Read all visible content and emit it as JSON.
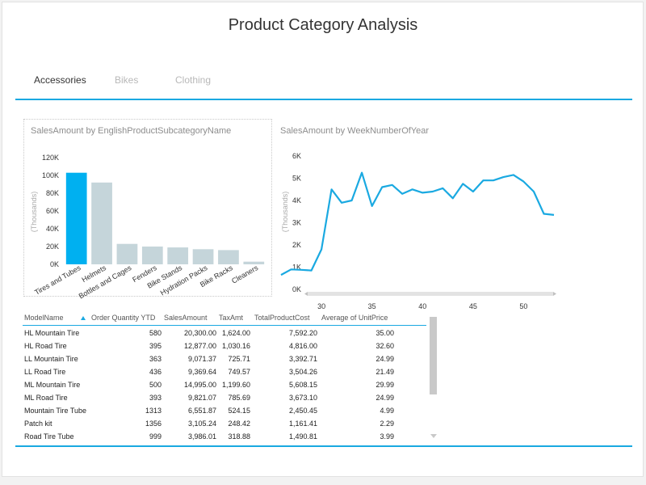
{
  "page": {
    "title": "Product Category Analysis"
  },
  "tabs": [
    {
      "label": "Accessories",
      "active": true
    },
    {
      "label": "Bikes",
      "active": false
    },
    {
      "label": "Clothing",
      "active": false
    }
  ],
  "accent_color": "#1aa9e1",
  "chart_data": [
    {
      "type": "bar",
      "title": "SalesAmount by EnglishProductSubcategoryName",
      "ylabel": "(Thousands)",
      "ylim": [
        0,
        120
      ],
      "yticks": [
        "0K",
        "20K",
        "40K",
        "60K",
        "80K",
        "100K",
        "120K"
      ],
      "categories": [
        "Tires and Tubes",
        "Helmets",
        "Bottles and Cages",
        "Fenders",
        "Bike Stands",
        "Hydration Packs",
        "Bike Racks",
        "Cleaners"
      ],
      "values": [
        103,
        92,
        23,
        20,
        19,
        17,
        16,
        3
      ],
      "highlight_index": 0,
      "colors": {
        "highlight": "#00b0f0",
        "base": "#c5d5da"
      }
    },
    {
      "type": "line",
      "title": "SalesAmount by WeekNumberOfYear",
      "ylabel": "(Thousands)",
      "ylim": [
        0,
        6
      ],
      "yticks": [
        "0K",
        "1K",
        "2K",
        "3K",
        "4K",
        "5K",
        "6K"
      ],
      "xticks": [
        30,
        35,
        40,
        45,
        50
      ],
      "xlim": [
        26,
        53
      ],
      "x": [
        26,
        27,
        28,
        29,
        30,
        31,
        32,
        33,
        34,
        35,
        36,
        37,
        38,
        39,
        40,
        41,
        42,
        43,
        44,
        45,
        46,
        47,
        48,
        49,
        50,
        51,
        52,
        53
      ],
      "y": [
        0.65,
        0.9,
        0.88,
        0.85,
        1.8,
        4.5,
        3.9,
        4.0,
        5.25,
        3.75,
        4.6,
        4.7,
        4.3,
        4.5,
        4.35,
        4.4,
        4.55,
        4.1,
        4.75,
        4.4,
        4.9,
        4.9,
        5.05,
        5.15,
        4.85,
        4.4,
        3.4,
        3.35
      ],
      "color": "#1aa9e1"
    }
  ],
  "table": {
    "columns": [
      "ModelName",
      "Order Quantity YTD",
      "SalesAmount",
      "TaxAmt",
      "TotalProductCost",
      "Average of UnitPrice"
    ],
    "rows": [
      [
        "HL Mountain Tire",
        "580",
        "20,300.00",
        "1,624.00",
        "7,592.20",
        "35.00"
      ],
      [
        "HL Road Tire",
        "395",
        "12,877.00",
        "1,030.16",
        "4,816.00",
        "32.60"
      ],
      [
        "LL Mountain Tire",
        "363",
        "9,071.37",
        "725.71",
        "3,392.71",
        "24.99"
      ],
      [
        "LL Road Tire",
        "436",
        "9,369.64",
        "749.57",
        "3,504.26",
        "21.49"
      ],
      [
        "ML Mountain Tire",
        "500",
        "14,995.00",
        "1,199.60",
        "5,608.15",
        "29.99"
      ],
      [
        "ML Road Tire",
        "393",
        "9,821.07",
        "785.69",
        "3,673.10",
        "24.99"
      ],
      [
        "Mountain Tire Tube",
        "1313",
        "6,551.87",
        "524.15",
        "2,450.45",
        "4.99"
      ],
      [
        "Patch kit",
        "1356",
        "3,105.24",
        "248.42",
        "1,161.41",
        "2.29"
      ],
      [
        "Road Tire Tube",
        "999",
        "3,986.01",
        "318.88",
        "1,490.81",
        "3.99"
      ]
    ]
  }
}
